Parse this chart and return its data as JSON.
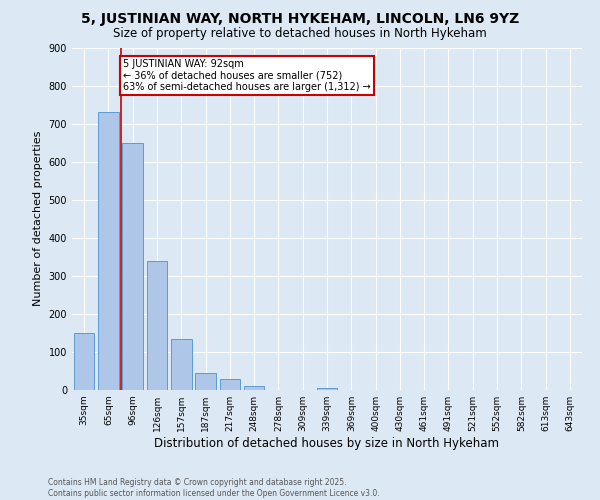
{
  "title": "5, JUSTINIAN WAY, NORTH HYKEHAM, LINCOLN, LN6 9YZ",
  "subtitle": "Size of property relative to detached houses in North Hykeham",
  "xlabel": "Distribution of detached houses by size in North Hykeham",
  "ylabel": "Number of detached properties",
  "categories": [
    "35sqm",
    "65sqm",
    "96sqm",
    "126sqm",
    "157sqm",
    "187sqm",
    "217sqm",
    "248sqm",
    "278sqm",
    "309sqm",
    "339sqm",
    "369sqm",
    "400sqm",
    "430sqm",
    "461sqm",
    "491sqm",
    "521sqm",
    "552sqm",
    "582sqm",
    "613sqm",
    "643sqm"
  ],
  "values": [
    150,
    730,
    650,
    340,
    135,
    45,
    30,
    10,
    0,
    0,
    5,
    0,
    0,
    0,
    0,
    0,
    0,
    0,
    0,
    0,
    0
  ],
  "bar_color": "#aec6e8",
  "bar_edge_color": "#5b9bd5",
  "red_line_index": 2,
  "annotation_line1": "5 JUSTINIAN WAY: 92sqm",
  "annotation_line2": "← 36% of detached houses are smaller (752)",
  "annotation_line3": "63% of semi-detached houses are larger (1,312) →",
  "ylim": [
    0,
    900
  ],
  "yticks": [
    0,
    100,
    200,
    300,
    400,
    500,
    600,
    700,
    800,
    900
  ],
  "bg_color": "#dce9f5",
  "footer_line1": "Contains HM Land Registry data © Crown copyright and database right 2025.",
  "footer_line2": "Contains public sector information licensed under the Open Government Licence v3.0.",
  "title_fontsize": 10,
  "subtitle_fontsize": 8.5,
  "annotation_box_facecolor": "#ffffff",
  "annotation_box_edgecolor": "#cc0000",
  "red_line_color": "#cc0000",
  "grid_color": "#ffffff",
  "tick_fontsize": 6.5,
  "ylabel_fontsize": 8,
  "xlabel_fontsize": 8.5,
  "footer_fontsize": 5.5
}
